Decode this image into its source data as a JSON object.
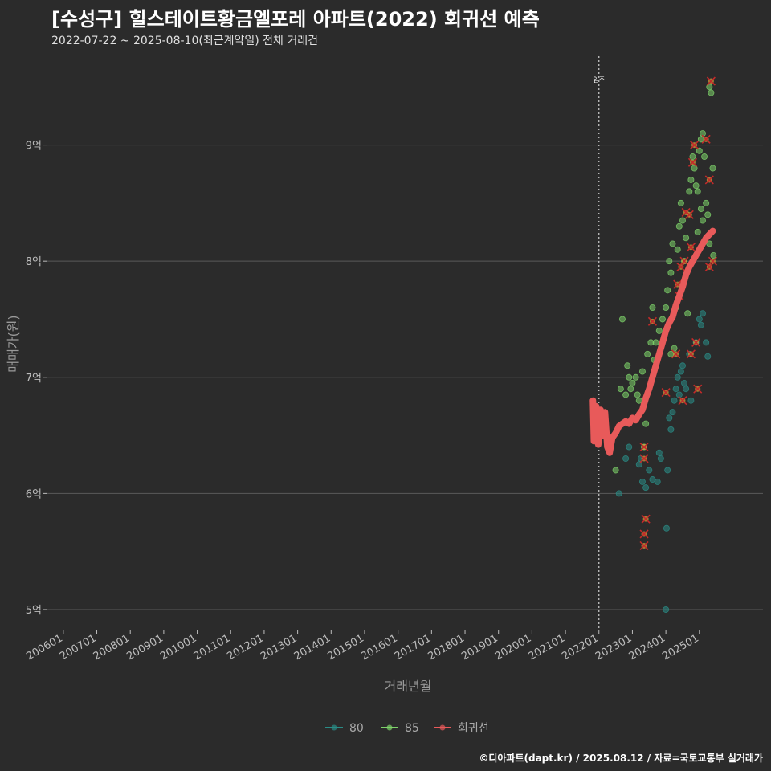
{
  "header": {
    "title": "[수성구] 힐스테이트황금엘포레 아파트(2022) 회귀선 예측",
    "subtitle": "2022-07-22 ~ 2025-08-10(최근계약일) 전체 거래건"
  },
  "footer": {
    "caption": "©디아파트(dapt.kr) / 2025.08.12 / 자료=국토교통부 실거래가"
  },
  "colors": {
    "background": "#2b2b2b",
    "grid": "#5a5a5a",
    "series_80": "#2a8c86",
    "series_85": "#7ed36a",
    "regression": "#e85a5a",
    "cross": "#c42a2a"
  },
  "chart_data": {
    "type": "scatter",
    "title": "[수성구] 힐스테이트황금엘포레 아파트(2022) 회귀선 예측",
    "xlabel": "거래년월",
    "ylabel": "매매가(원)",
    "xlim": [
      2005.5,
      2026.9
    ],
    "ylim": [
      4.82,
      9.82
    ],
    "y_ticks": [
      {
        "value": 5,
        "label": "5억"
      },
      {
        "value": 6,
        "label": "6억"
      },
      {
        "value": 7,
        "label": "7억"
      },
      {
        "value": 8,
        "label": "8억"
      },
      {
        "value": 9,
        "label": "9억"
      }
    ],
    "x_ticks": [
      {
        "value": 2006,
        "label": "200601"
      },
      {
        "value": 2007,
        "label": "200701"
      },
      {
        "value": 2008,
        "label": "200801"
      },
      {
        "value": 2009,
        "label": "200901"
      },
      {
        "value": 2010,
        "label": "201001"
      },
      {
        "value": 2011,
        "label": "201101"
      },
      {
        "value": 2012,
        "label": "201201"
      },
      {
        "value": 2013,
        "label": "201301"
      },
      {
        "value": 2014,
        "label": "201401"
      },
      {
        "value": 2015,
        "label": "201501"
      },
      {
        "value": 2016,
        "label": "201601"
      },
      {
        "value": 2017,
        "label": "201701"
      },
      {
        "value": 2018,
        "label": "201801"
      },
      {
        "value": 2019,
        "label": "201901"
      },
      {
        "value": 2020,
        "label": "202001"
      },
      {
        "value": 2021,
        "label": "202101"
      },
      {
        "value": 2022,
        "label": "202201"
      },
      {
        "value": 2023,
        "label": "202301"
      },
      {
        "value": 2024,
        "label": "202401"
      },
      {
        "value": 2025,
        "label": "202501"
      }
    ],
    "move_in": {
      "x": 2022.0,
      "label": "입주"
    },
    "legend": [
      {
        "key": "80",
        "label": "80"
      },
      {
        "key": "85",
        "label": "85"
      },
      {
        "key": "regression",
        "label": "회귀선"
      }
    ],
    "series": [
      {
        "name": "80",
        "points": [
          [
            2022.6,
            6.0
          ],
          [
            2022.8,
            6.3
          ],
          [
            2022.9,
            6.4
          ],
          [
            2023.2,
            6.25
          ],
          [
            2023.25,
            6.3
          ],
          [
            2023.3,
            6.1
          ],
          [
            2023.4,
            6.05
          ],
          [
            2023.5,
            6.2
          ],
          [
            2023.6,
            6.12
          ],
          [
            2023.75,
            6.1
          ],
          [
            2023.8,
            6.35
          ],
          [
            2023.85,
            6.3
          ],
          [
            2024.0,
            5.0
          ],
          [
            2024.02,
            5.7
          ],
          [
            2024.05,
            6.2
          ],
          [
            2024.1,
            6.65
          ],
          [
            2024.15,
            6.55
          ],
          [
            2024.2,
            6.7
          ],
          [
            2024.25,
            6.8
          ],
          [
            2024.3,
            6.9
          ],
          [
            2024.35,
            7.0
          ],
          [
            2024.4,
            6.85
          ],
          [
            2024.45,
            7.05
          ],
          [
            2024.5,
            7.1
          ],
          [
            2024.6,
            6.9
          ],
          [
            2024.7,
            7.2
          ],
          [
            2024.9,
            7.3
          ],
          [
            2025.0,
            7.5
          ],
          [
            2025.05,
            7.45
          ],
          [
            2025.1,
            7.55
          ],
          [
            2025.2,
            7.3
          ],
          [
            2025.25,
            7.18
          ],
          [
            2024.75,
            6.8
          ],
          [
            2024.55,
            6.95
          ]
        ]
      },
      {
        "name": "85",
        "points": [
          [
            2022.5,
            6.2
          ],
          [
            2022.65,
            6.9
          ],
          [
            2022.7,
            7.5
          ],
          [
            2022.8,
            6.85
          ],
          [
            2022.9,
            7.0
          ],
          [
            2022.95,
            6.9
          ],
          [
            2023.0,
            6.95
          ],
          [
            2023.1,
            7.0
          ],
          [
            2023.2,
            6.8
          ],
          [
            2023.3,
            7.05
          ],
          [
            2023.35,
            6.4
          ],
          [
            2023.45,
            7.2
          ],
          [
            2023.55,
            7.3
          ],
          [
            2023.6,
            7.6
          ],
          [
            2023.7,
            7.3
          ],
          [
            2023.8,
            7.4
          ],
          [
            2023.9,
            7.5
          ],
          [
            2024.0,
            7.6
          ],
          [
            2024.05,
            7.75
          ],
          [
            2024.1,
            8.0
          ],
          [
            2024.15,
            7.9
          ],
          [
            2024.2,
            8.15
          ],
          [
            2024.3,
            7.6
          ],
          [
            2024.35,
            8.1
          ],
          [
            2024.4,
            8.3
          ],
          [
            2024.45,
            8.5
          ],
          [
            2024.5,
            8.35
          ],
          [
            2024.55,
            8.0
          ],
          [
            2024.6,
            8.2
          ],
          [
            2024.7,
            8.6
          ],
          [
            2024.75,
            8.7
          ],
          [
            2024.8,
            8.9
          ],
          [
            2024.85,
            8.8
          ],
          [
            2024.9,
            8.65
          ],
          [
            2024.95,
            8.6
          ],
          [
            2025.0,
            8.95
          ],
          [
            2025.05,
            9.05
          ],
          [
            2025.1,
            9.1
          ],
          [
            2025.15,
            8.9
          ],
          [
            2025.2,
            8.5
          ],
          [
            2025.25,
            8.4
          ],
          [
            2025.3,
            9.5
          ],
          [
            2025.35,
            9.45
          ],
          [
            2025.4,
            8.8
          ],
          [
            2025.42,
            8.05
          ],
          [
            2025.1,
            8.35
          ],
          [
            2025.05,
            8.45
          ],
          [
            2024.95,
            8.25
          ],
          [
            2024.65,
            7.55
          ],
          [
            2024.25,
            7.25
          ],
          [
            2023.95,
            7.35
          ],
          [
            2023.65,
            7.15
          ],
          [
            2023.4,
            6.6
          ],
          [
            2023.15,
            6.85
          ],
          [
            2022.85,
            7.1
          ],
          [
            2024.15,
            7.2
          ],
          [
            2024.8,
            8.0
          ],
          [
            2025.3,
            8.15
          ]
        ]
      }
    ],
    "highlighted": [
      [
        2023.35,
        6.4
      ],
      [
        2023.35,
        6.3
      ],
      [
        2023.4,
        5.78
      ],
      [
        2023.35,
        5.65
      ],
      [
        2023.35,
        5.55
      ],
      [
        2023.6,
        7.48
      ],
      [
        2024.0,
        6.87
      ],
      [
        2024.3,
        7.2
      ],
      [
        2024.5,
        6.8
      ],
      [
        2024.4,
        7.7
      ],
      [
        2024.45,
        7.95
      ],
      [
        2024.55,
        8.0
      ],
      [
        2024.6,
        8.42
      ],
      [
        2024.7,
        8.4
      ],
      [
        2024.75,
        8.12
      ],
      [
        2024.8,
        8.85
      ],
      [
        2024.85,
        9.0
      ],
      [
        2024.9,
        7.3
      ],
      [
        2024.95,
        6.9
      ],
      [
        2024.75,
        7.2
      ],
      [
        2025.2,
        9.05
      ],
      [
        2025.3,
        8.7
      ],
      [
        2025.35,
        9.55
      ],
      [
        2025.3,
        7.95
      ],
      [
        2025.4,
        8.0
      ],
      [
        2024.35,
        7.8
      ]
    ],
    "regression_line": [
      [
        2021.82,
        6.8
      ],
      [
        2021.85,
        6.45
      ],
      [
        2021.92,
        6.75
      ],
      [
        2021.98,
        6.42
      ],
      [
        2022.05,
        6.72
      ],
      [
        2022.12,
        6.5
      ],
      [
        2022.18,
        6.7
      ],
      [
        2022.25,
        6.4
      ],
      [
        2022.32,
        6.35
      ],
      [
        2022.4,
        6.48
      ],
      [
        2022.5,
        6.52
      ],
      [
        2022.6,
        6.58
      ],
      [
        2022.7,
        6.6
      ],
      [
        2022.8,
        6.62
      ],
      [
        2022.9,
        6.6
      ],
      [
        2023.0,
        6.65
      ],
      [
        2023.1,
        6.63
      ],
      [
        2023.2,
        6.68
      ],
      [
        2023.3,
        6.72
      ],
      [
        2023.4,
        6.82
      ],
      [
        2023.5,
        6.9
      ],
      [
        2023.6,
        7.0
      ],
      [
        2023.7,
        7.1
      ],
      [
        2023.8,
        7.2
      ],
      [
        2023.9,
        7.3
      ],
      [
        2024.0,
        7.4
      ],
      [
        2024.1,
        7.47
      ],
      [
        2024.2,
        7.52
      ],
      [
        2024.3,
        7.62
      ],
      [
        2024.4,
        7.7
      ],
      [
        2024.5,
        7.78
      ],
      [
        2024.6,
        7.88
      ],
      [
        2024.7,
        7.95
      ],
      [
        2024.8,
        8.0
      ],
      [
        2024.9,
        8.05
      ],
      [
        2025.0,
        8.1
      ],
      [
        2025.1,
        8.15
      ],
      [
        2025.2,
        8.2
      ],
      [
        2025.3,
        8.23
      ],
      [
        2025.4,
        8.26
      ]
    ]
  }
}
